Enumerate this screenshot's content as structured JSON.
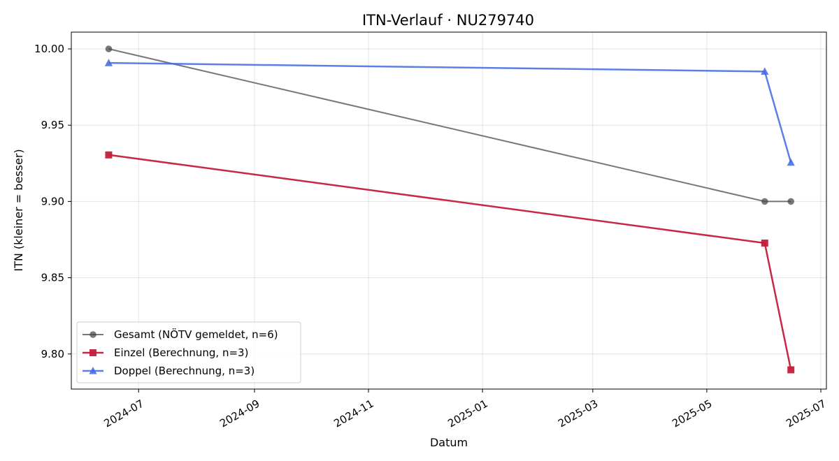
{
  "chart_data": {
    "type": "line",
    "title": "ITN-Verlauf · NU279740",
    "xlabel": "Datum",
    "ylabel": "ITN  (kleiner = besser)",
    "x_type": "date",
    "xlim": [
      "2024-05-26",
      "2025-07-04"
    ],
    "ylim": [
      9.777,
      10.011
    ],
    "x_ticks": [
      "2024-07",
      "2024-09",
      "2024-11",
      "2025-01",
      "2025-03",
      "2025-05",
      "2025-07"
    ],
    "x_tick_dates": [
      "2024-07-01",
      "2024-09-01",
      "2024-11-01",
      "2025-01-01",
      "2025-03-01",
      "2025-05-01",
      "2025-07-01"
    ],
    "y_ticks": [
      9.8,
      9.85,
      9.9,
      9.95,
      10.0
    ],
    "y_tick_labels": [
      "9.80",
      "9.85",
      "9.90",
      "9.95",
      "10.00"
    ],
    "grid": true,
    "legend_position": "lower-left",
    "series": [
      {
        "name": "Gesamt (NÖTV gemeldet, n=6)",
        "color": "#444444",
        "marker": "circle",
        "x": [
          "2024-06-15",
          "2025-06-01",
          "2025-06-15"
        ],
        "y": [
          10.0,
          9.9,
          9.9
        ]
      },
      {
        "name": "Einzel (Berechnung, n=3)",
        "color": "#c41e3a",
        "marker": "square",
        "x": [
          "2024-06-15",
          "2025-06-01",
          "2025-06-15"
        ],
        "y": [
          9.9305,
          9.8727,
          9.7896
        ]
      },
      {
        "name": "Doppel (Berechnung, n=3)",
        "color": "#4169e1",
        "marker": "triangle",
        "x": [
          "2024-06-15",
          "2025-06-01",
          "2025-06-15"
        ],
        "y": [
          9.9908,
          9.9852,
          9.9255
        ]
      }
    ]
  }
}
